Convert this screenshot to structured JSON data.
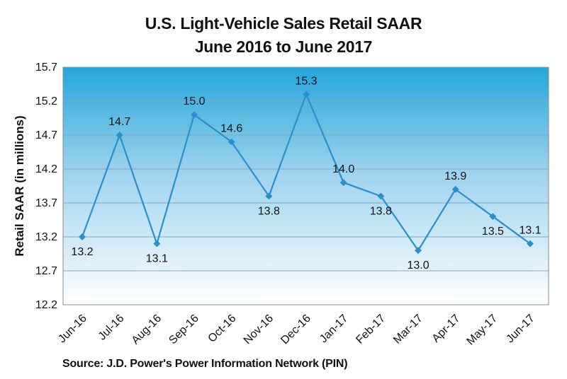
{
  "chart_data": {
    "type": "line",
    "title": "U.S. Light-Vehicle Sales Retail SAAR",
    "subtitle": "June 2016 to June 2017",
    "xlabel": "",
    "ylabel": "Retail SAAR (in millions)",
    "source": "Source: J.D. Power's Power Information Network (PIN)",
    "categories": [
      "Jun-16",
      "Jul-16",
      "Aug-16",
      "Sep-16",
      "Oct-16",
      "Nov-16",
      "Dec-16",
      "Jan-17",
      "Feb-17",
      "Mar-17",
      "Apr-17",
      "May-17",
      "Jun-17"
    ],
    "values": [
      13.2,
      14.7,
      13.1,
      15.0,
      14.6,
      13.8,
      15.3,
      14.0,
      13.8,
      13.0,
      13.9,
      13.5,
      13.1
    ],
    "data_labels": [
      "13.2",
      "14.7",
      "13.1",
      "15.0",
      "14.6",
      "13.8",
      "15.3",
      "14.0",
      "13.8",
      "13.0",
      "13.9",
      "13.5",
      "13.1"
    ],
    "ylim": [
      12.2,
      15.7
    ],
    "yticks": [
      "12.2",
      "12.7",
      "13.2",
      "13.7",
      "14.2",
      "14.7",
      "15.2",
      "15.7"
    ],
    "grid": true,
    "colors": {
      "line": "#2a8fcb",
      "grid": "#7fa8c4",
      "plot_top": "#25a6db",
      "plot_bottom": "#ffffff"
    }
  }
}
